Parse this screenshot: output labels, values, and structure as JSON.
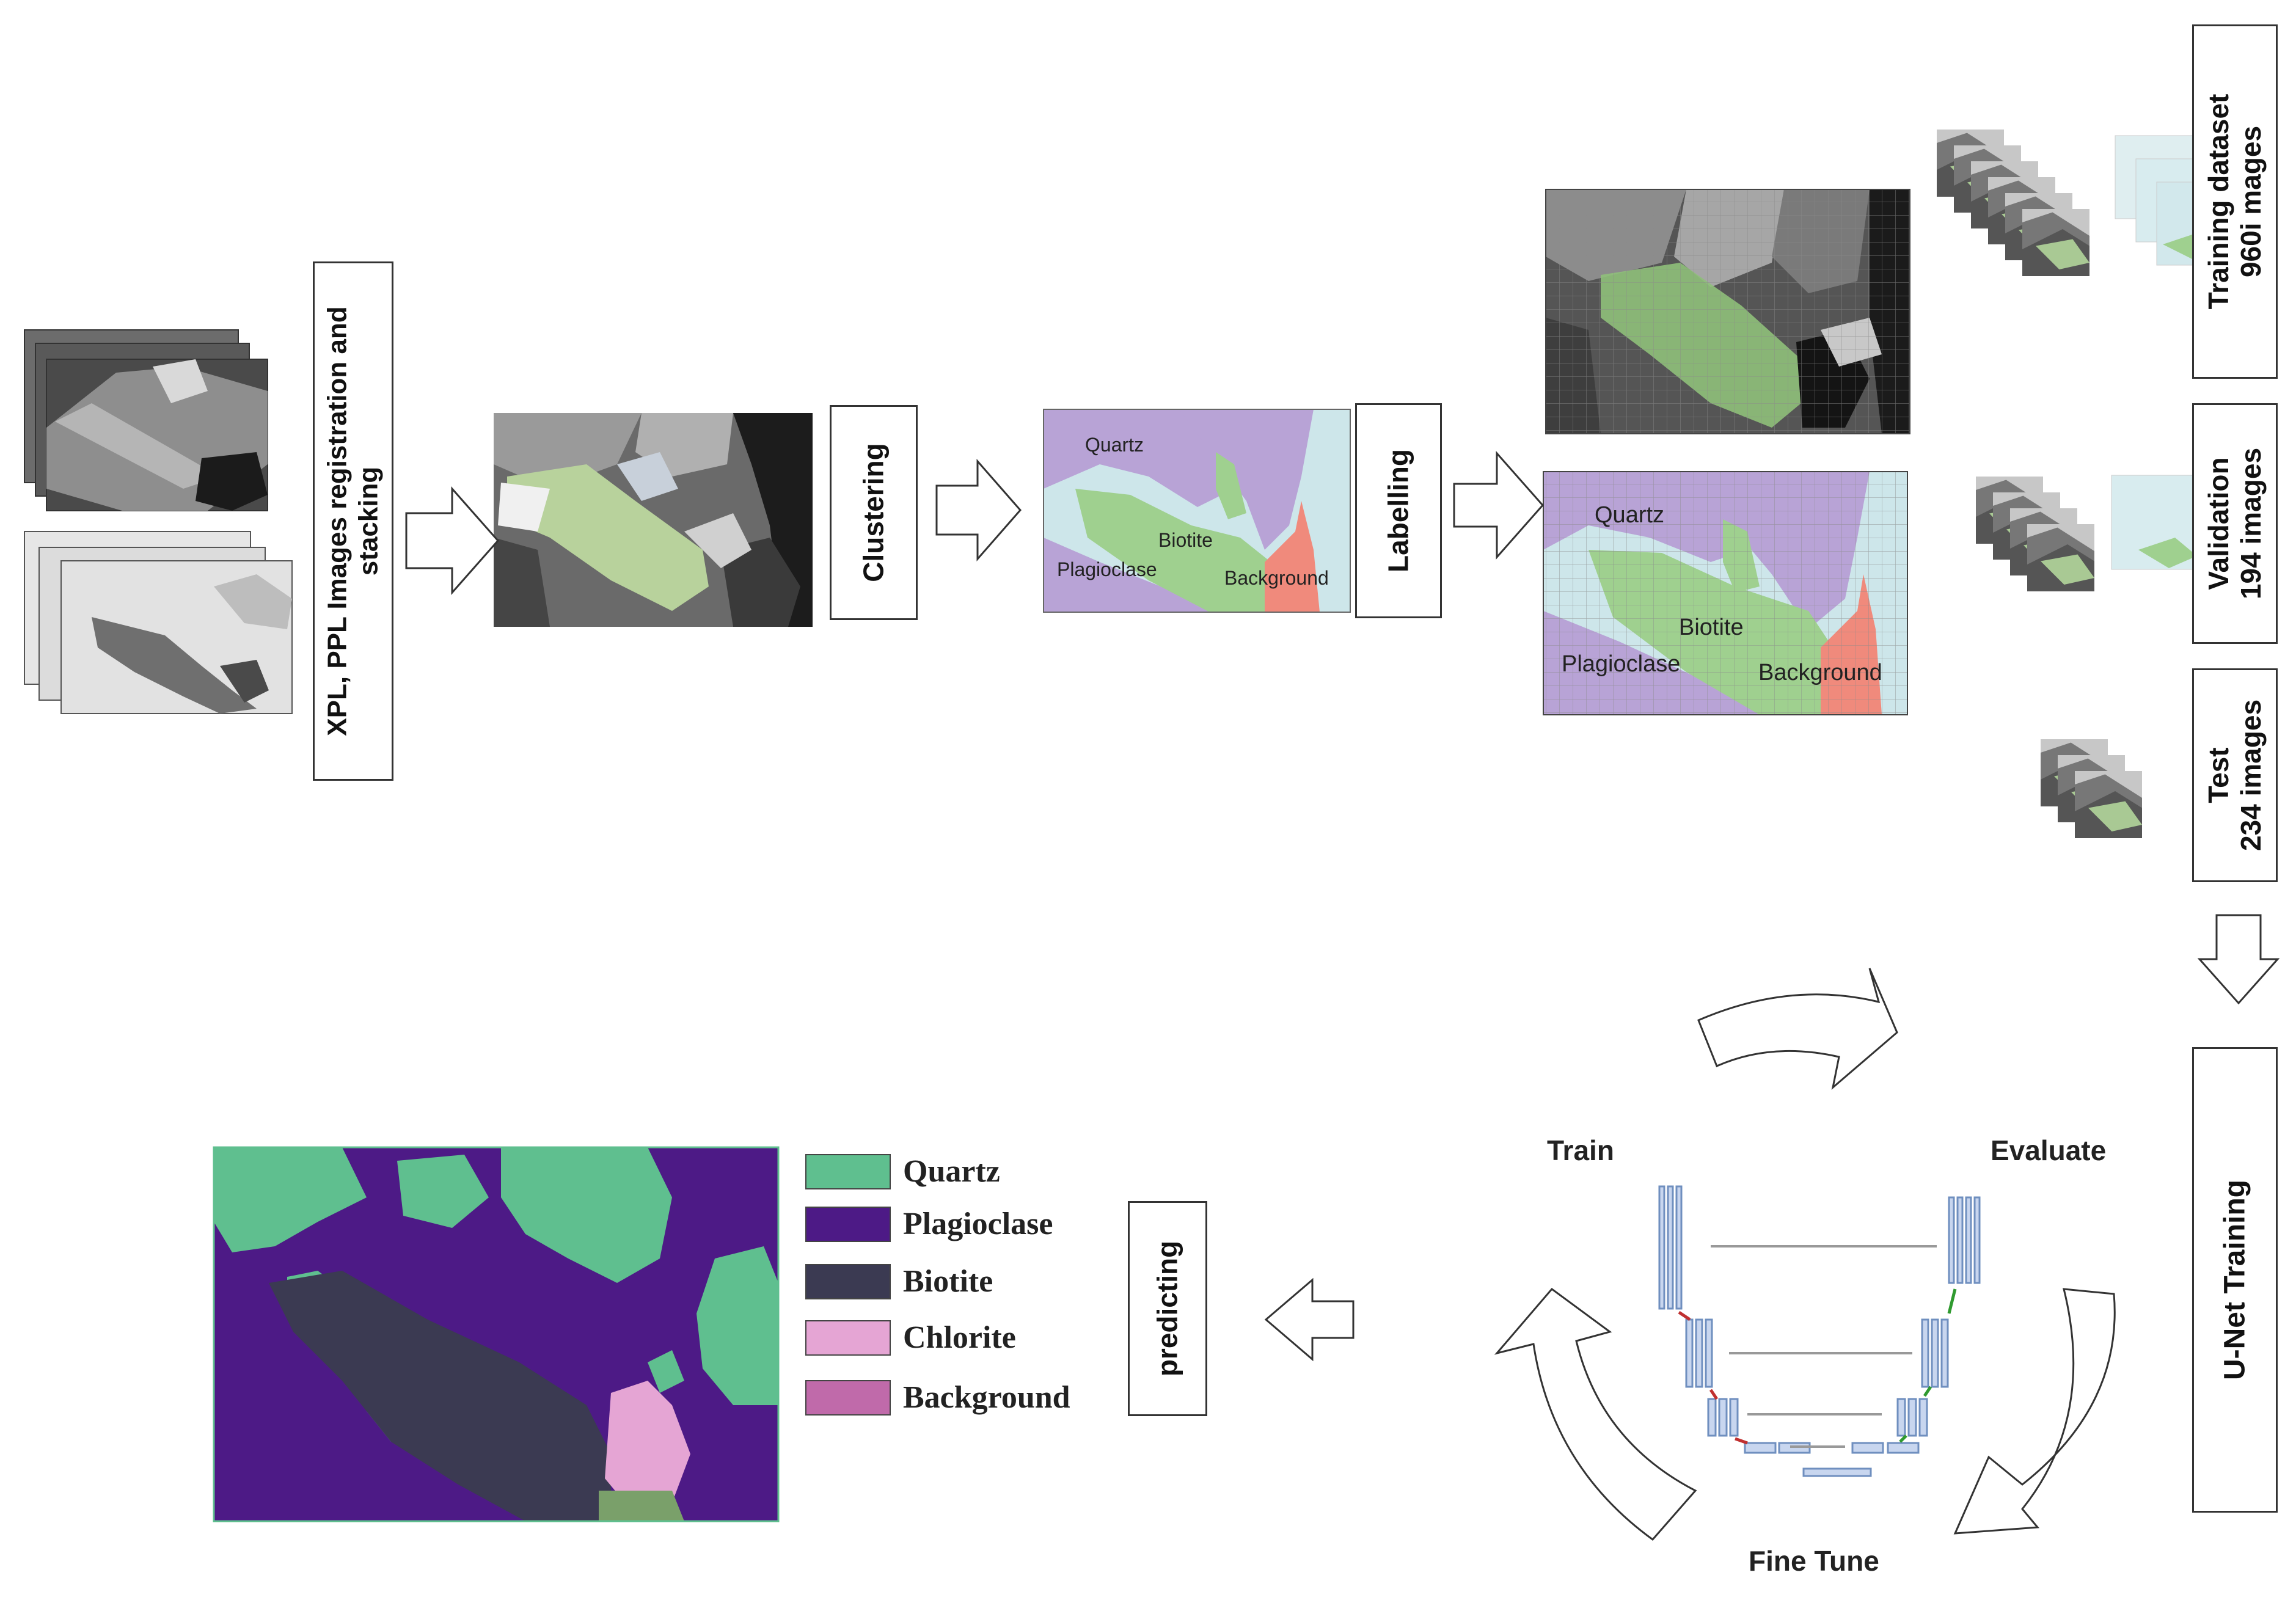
{
  "steps": {
    "registration": "XPL, PPL Images registration and stacking",
    "clustering": "Clustering",
    "labelling": "Labelling",
    "predicting": "predicting",
    "unet_training": "U-Net Training"
  },
  "datasets": {
    "training": {
      "line1": "Training dataset",
      "line2": "960i mages"
    },
    "validation": {
      "line1": "Validation",
      "line2": "194 images"
    },
    "test": {
      "line1": "Test",
      "line2": "234 images"
    }
  },
  "cycle": {
    "train": "Train",
    "evaluate": "Evaluate",
    "fine_tune": "Fine Tune"
  },
  "map_labels": {
    "quartz": "Quartz",
    "plagioclase": "Plagioclase",
    "biotite": "Biotite",
    "background": "Background"
  },
  "legend": [
    {
      "label": "Quartz",
      "color": "#5fbf8f"
    },
    {
      "label": "Plagioclase",
      "color": "#4d1a86"
    },
    {
      "label": "Biotite",
      "color": "#3b3a52"
    },
    {
      "label": "Chlorite",
      "color": "#e5a5d4"
    },
    {
      "label": "Background",
      "color": "#c06aaa"
    }
  ],
  "colors": {
    "cluster_quartz": "#cde6ea",
    "cluster_plagioclase": "#b8a3d6",
    "cluster_biotite": "#9fd08f",
    "cluster_background": "#f08a7c"
  }
}
